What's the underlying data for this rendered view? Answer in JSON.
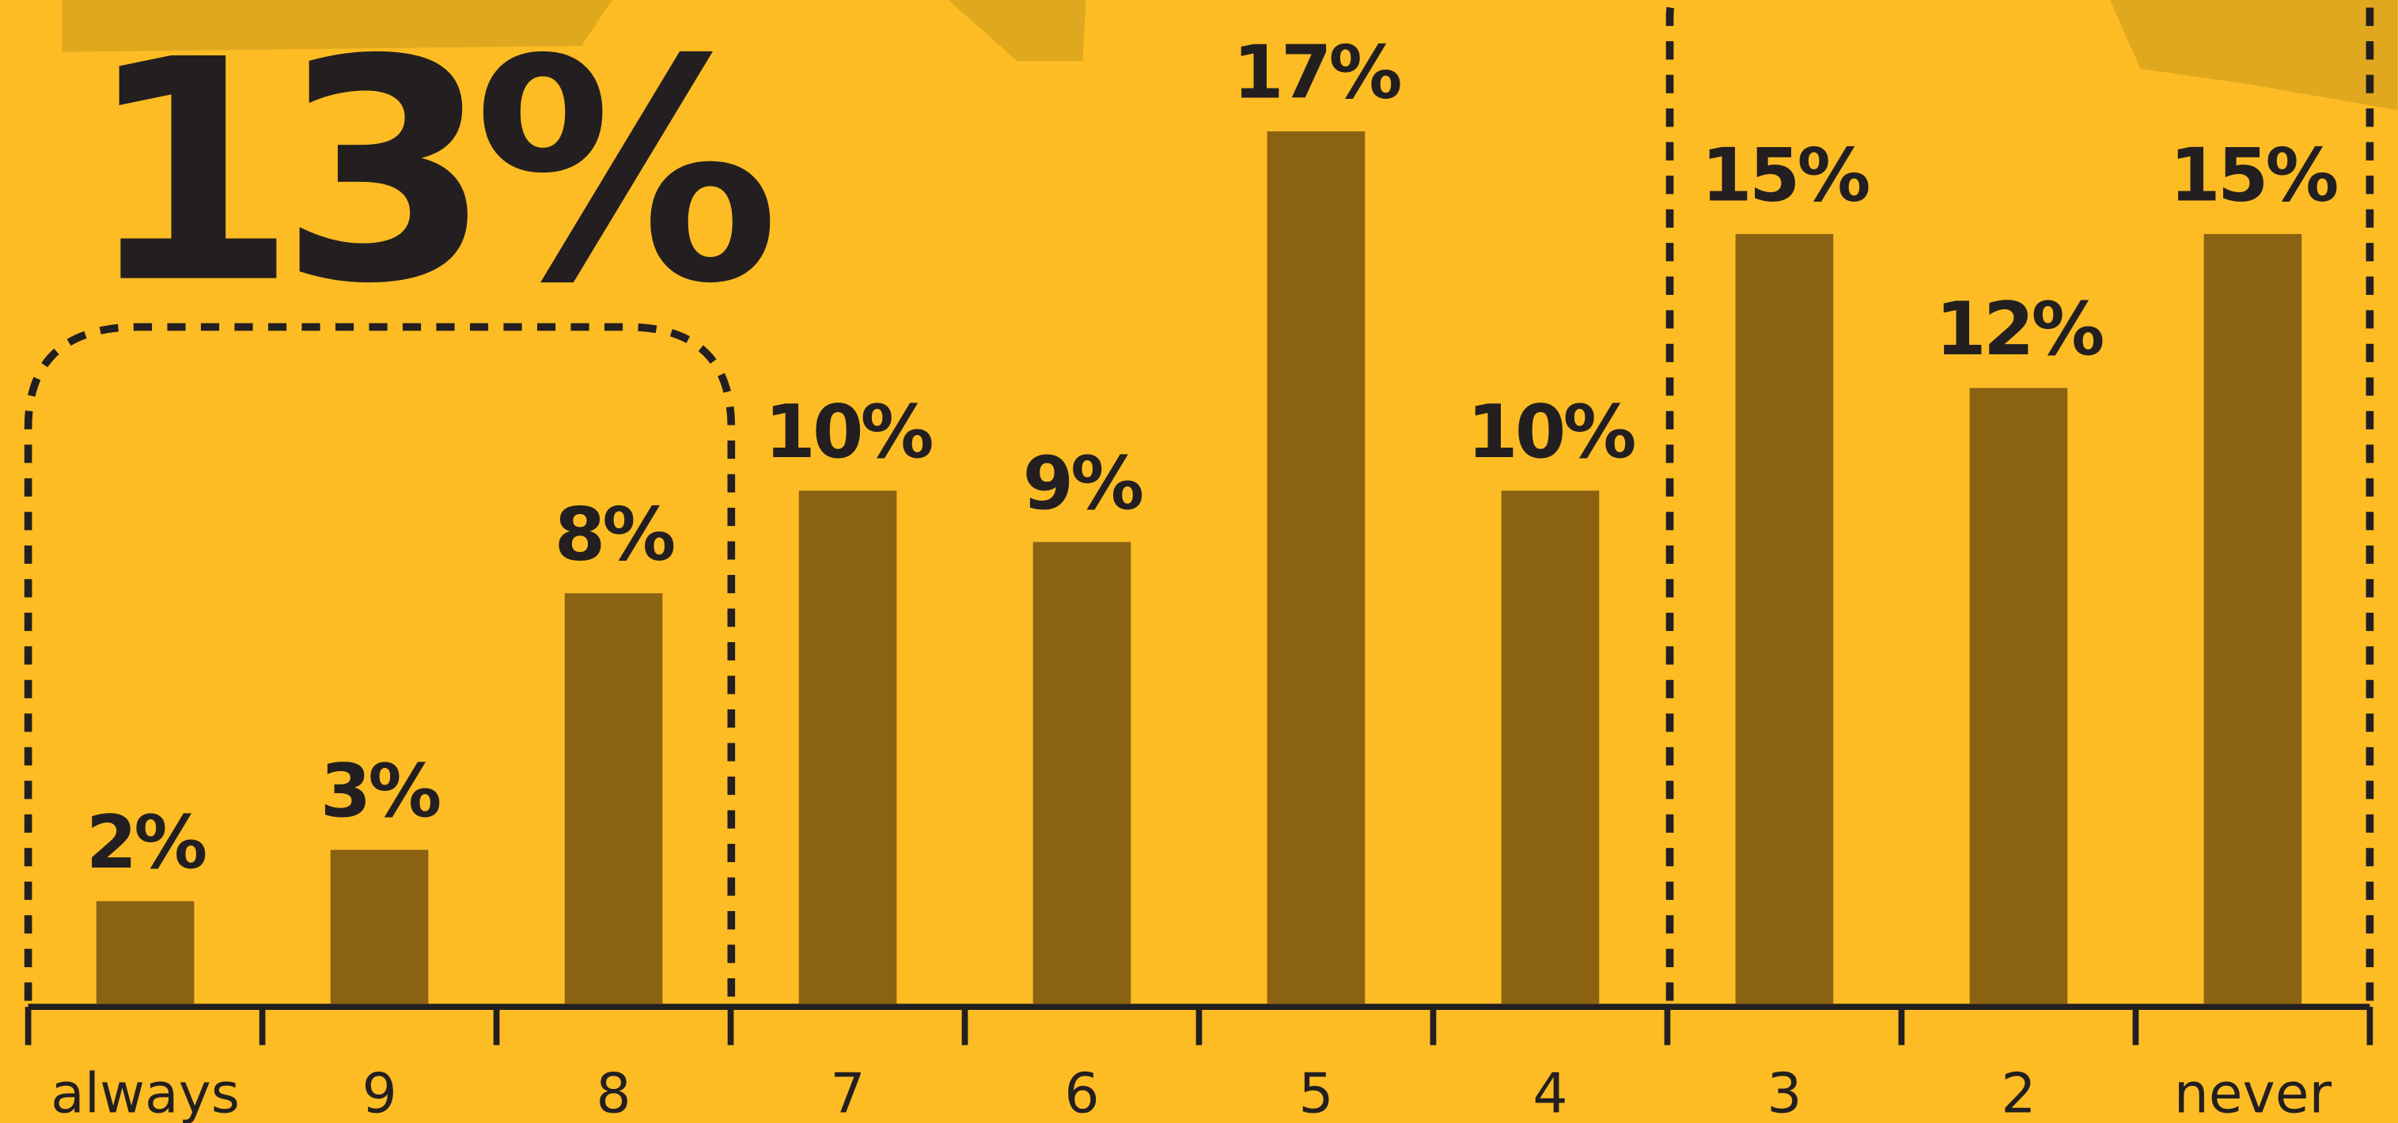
{
  "chart_data": {
    "type": "bar",
    "headline": "13%",
    "categories": [
      "always",
      "9",
      "8",
      "7",
      "6",
      "5",
      "4",
      "3",
      "2",
      "never"
    ],
    "values": [
      2,
      3,
      8,
      10,
      9,
      17,
      10,
      15,
      12,
      15
    ],
    "value_labels": [
      "2%",
      "3%",
      "8%",
      "10%",
      "9%",
      "17%",
      "10%",
      "15%",
      "12%",
      "15%"
    ],
    "color": "#8a6212"
  }
}
